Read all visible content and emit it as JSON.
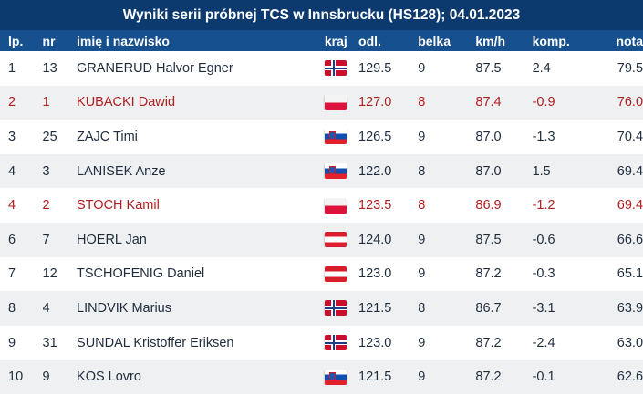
{
  "title": "Wyniki serii próbnej TCS w Innsbrucku (HS128); 04.01.2023",
  "columns": {
    "lp": "lp.",
    "nr": "nr",
    "name": "imię i nazwisko",
    "flag": "kraj",
    "odl": "odl.",
    "belka": "belka",
    "kmh": "km/h",
    "komp": "komp.",
    "nota": "nota"
  },
  "colors": {
    "title_bg": "#0c3a6e",
    "header_bg": "#16508f",
    "highlight_text": "#b01e1e",
    "stripe": "#eef0f2"
  },
  "rows": [
    {
      "lp": "1",
      "nr": "13",
      "name": "GRANERUD Halvor Egner",
      "country_flag": "flag-norway-icon",
      "odl": "129.5",
      "belka": "9",
      "kmh": "87.5",
      "komp": "2.4",
      "nota": "79.5",
      "highlight": false
    },
    {
      "lp": "2",
      "nr": "1",
      "name": "KUBACKI Dawid",
      "country_flag": "flag-poland-icon",
      "odl": "127.0",
      "belka": "8",
      "kmh": "87.4",
      "komp": "-0.9",
      "nota": "76.0",
      "highlight": true
    },
    {
      "lp": "3",
      "nr": "25",
      "name": "ZAJC Timi",
      "country_flag": "flag-slovenia-icon",
      "odl": "126.5",
      "belka": "9",
      "kmh": "87.0",
      "komp": "-1.3",
      "nota": "70.4",
      "highlight": false
    },
    {
      "lp": "4",
      "nr": "3",
      "name": "LANISEK Anze",
      "country_flag": "flag-slovenia-icon",
      "odl": "122.0",
      "belka": "8",
      "kmh": "87.0",
      "komp": "1.5",
      "nota": "69.4",
      "highlight": false
    },
    {
      "lp": "4",
      "nr": "2",
      "name": "STOCH Kamil",
      "country_flag": "flag-poland-icon",
      "odl": "123.5",
      "belka": "8",
      "kmh": "86.9",
      "komp": "-1.2",
      "nota": "69.4",
      "highlight": true
    },
    {
      "lp": "6",
      "nr": "7",
      "name": "HOERL Jan",
      "country_flag": "flag-austria-icon",
      "odl": "124.0",
      "belka": "9",
      "kmh": "87.5",
      "komp": "-0.6",
      "nota": "66.6",
      "highlight": false
    },
    {
      "lp": "7",
      "nr": "12",
      "name": "TSCHOFENIG Daniel",
      "country_flag": "flag-austria-icon",
      "odl": "123.0",
      "belka": "9",
      "kmh": "87.2",
      "komp": "-0.3",
      "nota": "65.1",
      "highlight": false
    },
    {
      "lp": "8",
      "nr": "4",
      "name": "LINDVIK Marius",
      "country_flag": "flag-norway-icon",
      "odl": "121.5",
      "belka": "8",
      "kmh": "86.7",
      "komp": "-3.1",
      "nota": "63.9",
      "highlight": false
    },
    {
      "lp": "9",
      "nr": "31",
      "name": "SUNDAL Kristoffer Eriksen",
      "country_flag": "flag-norway-icon",
      "odl": "123.0",
      "belka": "9",
      "kmh": "87.2",
      "komp": "-2.4",
      "nota": "63.0",
      "highlight": false
    },
    {
      "lp": "10",
      "nr": "9",
      "name": "KOS Lovro",
      "country_flag": "flag-slovenia-icon",
      "odl": "121.5",
      "belka": "9",
      "kmh": "87.2",
      "komp": "-0.1",
      "nota": "62.6",
      "highlight": false
    }
  ]
}
